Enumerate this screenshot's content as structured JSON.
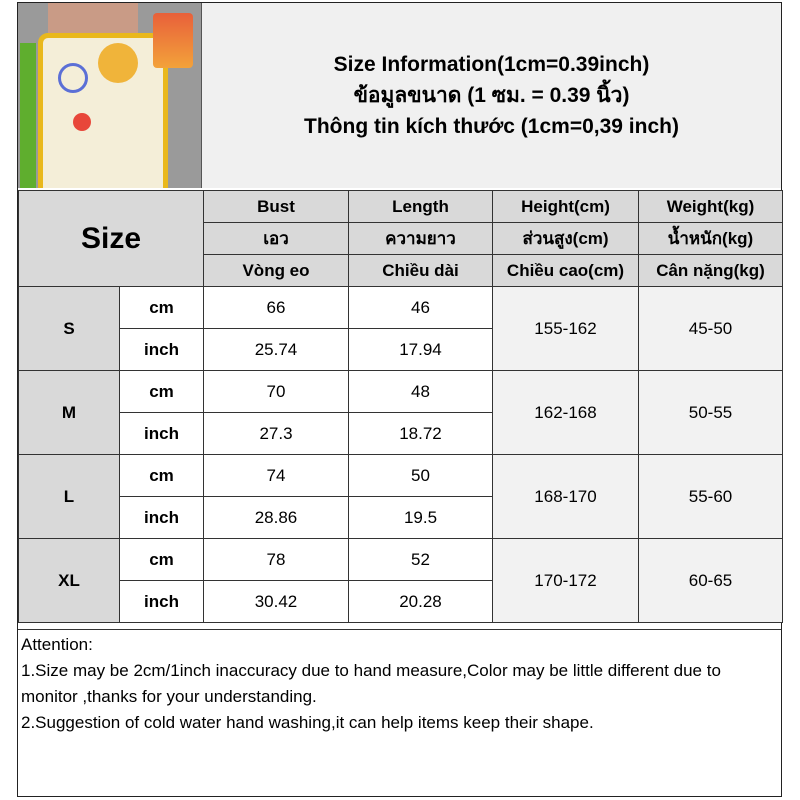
{
  "title": {
    "line_en": "Size Information(1cm=0.39inch)",
    "line_th": "ข้อมูลขนาด (1 ซม. = 0.39 นิ้ว)",
    "line_vi": "Thông tin kích thước (1cm=0,39 inch)"
  },
  "table": {
    "size_label": "Size",
    "headers": [
      [
        "Bust",
        "Length",
        "Height(cm)",
        "Weight(kg)"
      ],
      [
        "เอว",
        "ความยาว",
        "ส่วนสูง(cm)",
        "น้ำหนัก(kg)"
      ],
      [
        "Vòng eo",
        "Chiều dài",
        "Chiều cao(cm)",
        "Cân nặng(kg)"
      ]
    ],
    "rows": [
      {
        "size": "S",
        "cm_label": "cm",
        "inch_label": "inch",
        "bust_cm": "66",
        "length_cm": "46",
        "bust_inch": "25.74",
        "length_inch": "17.94",
        "height": "155-162",
        "weight": "45-50"
      },
      {
        "size": "M",
        "cm_label": "cm",
        "inch_label": "inch",
        "bust_cm": "70",
        "length_cm": "48",
        "bust_inch": "27.3",
        "length_inch": "18.72",
        "height": "162-168",
        "weight": "50-55"
      },
      {
        "size": "L",
        "cm_label": "cm",
        "inch_label": "inch",
        "bust_cm": "74",
        "length_cm": "50",
        "bust_inch": "28.86",
        "length_inch": "19.5",
        "height": "168-170",
        "weight": "55-60"
      },
      {
        "size": "XL",
        "cm_label": "cm",
        "inch_label": "inch",
        "bust_cm": "78",
        "length_cm": "52",
        "bust_inch": "30.42",
        "length_inch": "20.28",
        "height": "170-172",
        "weight": "60-65"
      }
    ]
  },
  "attention": {
    "heading": "Attention:",
    "items": [
      "1.Size may be 2cm/1inch inaccuracy due to hand measure,Color may be little different due to monitor ,thanks for your understanding.",
      "2.Suggestion of cold water hand washing,it can help items keep their shape."
    ]
  }
}
